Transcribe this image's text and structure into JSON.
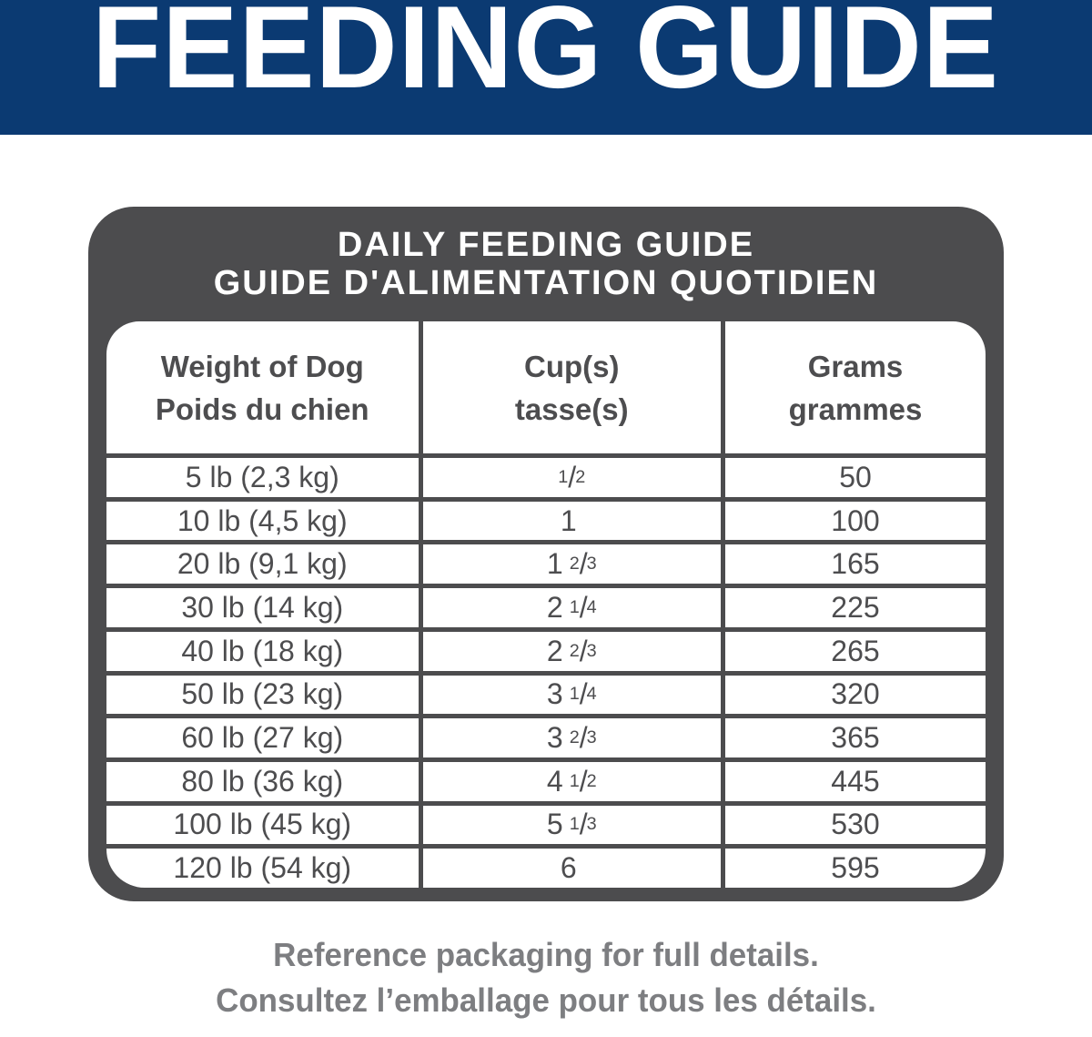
{
  "banner": {
    "title": "FEEDING GUIDE"
  },
  "panel": {
    "title_line1": "DAILY FEEDING GUIDE",
    "title_line2": "GUIDE D'ALIMENTATION QUOTIDIEN"
  },
  "table": {
    "columns": [
      {
        "line1": "Weight of Dog",
        "line2": "Poids du chien"
      },
      {
        "line1": "Cup(s)",
        "line2": "tasse(s)"
      },
      {
        "line1": "Grams",
        "line2": "grammes"
      }
    ],
    "rows": [
      {
        "weight": "5 lb (2,3 kg)",
        "cup_whole": "",
        "cup_sup": "1",
        "cup_slash": "/",
        "cup_sub": "2",
        "grams": "50"
      },
      {
        "weight": "10 lb (4,5 kg)",
        "cup_whole": "1",
        "cup_sup": "",
        "cup_slash": "",
        "cup_sub": "",
        "grams": "100"
      },
      {
        "weight": "20 lb (9,1 kg)",
        "cup_whole": "1",
        "cup_sup": "2",
        "cup_slash": "/",
        "cup_sub": "3",
        "grams": "165"
      },
      {
        "weight": "30 lb (14 kg)",
        "cup_whole": "2",
        "cup_sup": "1",
        "cup_slash": "/",
        "cup_sub": "4",
        "grams": "225"
      },
      {
        "weight": "40 lb (18 kg)",
        "cup_whole": "2",
        "cup_sup": "2",
        "cup_slash": "/",
        "cup_sub": "3",
        "grams": "265"
      },
      {
        "weight": "50 lb (23 kg)",
        "cup_whole": "3",
        "cup_sup": "1",
        "cup_slash": "/",
        "cup_sub": "4",
        "grams": "320"
      },
      {
        "weight": "60 lb (27 kg)",
        "cup_whole": "3",
        "cup_sup": "2",
        "cup_slash": "/",
        "cup_sub": "3",
        "grams": "365"
      },
      {
        "weight": "80 lb (36 kg)",
        "cup_whole": "4",
        "cup_sup": "1",
        "cup_slash": "/",
        "cup_sub": "2",
        "grams": "445"
      },
      {
        "weight": "100 lb (45 kg)",
        "cup_whole": "5",
        "cup_sup": "1",
        "cup_slash": "/",
        "cup_sub": "3",
        "grams": "530"
      },
      {
        "weight": "120 lb (54 kg)",
        "cup_whole": "6",
        "cup_sup": "",
        "cup_slash": "",
        "cup_sub": "",
        "grams": "595"
      }
    ]
  },
  "footer": {
    "line1": "Reference packaging for full details.",
    "line2": "Consultez l’emballage pour tous les détails."
  },
  "colors": {
    "banner_blue": "#0b3a72",
    "panel_gray": "#4c4c4e",
    "table_text": "#4d4d4f",
    "footer_text": "#7d7e81"
  },
  "chart_data": {
    "type": "table",
    "title": "DAILY FEEDING GUIDE / GUIDE D'ALIMENTATION QUOTIDIEN",
    "columns": [
      "Weight of Dog / Poids du chien",
      "Cup(s) / tasse(s)",
      "Grams / grammes"
    ],
    "rows": [
      [
        "5 lb (2,3 kg)",
        "1/2",
        "50"
      ],
      [
        "10 lb (4,5 kg)",
        "1",
        "100"
      ],
      [
        "20 lb (9,1 kg)",
        "1 2/3",
        "165"
      ],
      [
        "30 lb (14 kg)",
        "2 1/4",
        "225"
      ],
      [
        "40 lb (18 kg)",
        "2 2/3",
        "265"
      ],
      [
        "50 lb (23 kg)",
        "3 1/4",
        "320"
      ],
      [
        "60 lb (27 kg)",
        "3 2/3",
        "365"
      ],
      [
        "80 lb (36 kg)",
        "4 1/2",
        "445"
      ],
      [
        "100 lb (45 kg)",
        "5 1/3",
        "530"
      ],
      [
        "120 lb (54 kg)",
        "6",
        "595"
      ]
    ]
  }
}
